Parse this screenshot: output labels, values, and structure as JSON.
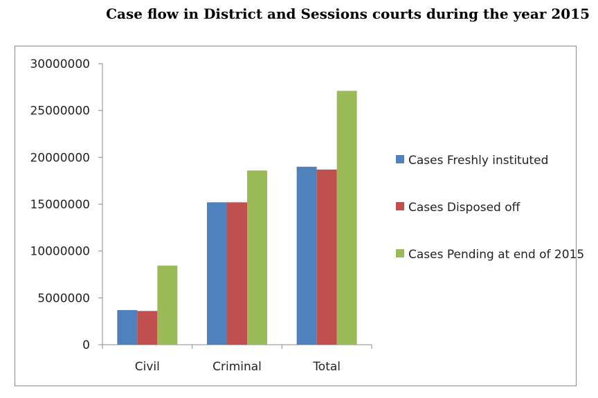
{
  "title": "Case flow in District and Sessions courts during the year 2015",
  "chart_data": {
    "type": "bar",
    "categories": [
      "Civil",
      "Criminal",
      "Total"
    ],
    "series": [
      {
        "name": "Cases Freshly instituted",
        "color": "#4f81bd",
        "values": [
          3700000,
          15200000,
          19000000
        ]
      },
      {
        "name": "Cases Disposed off",
        "color": "#c0504d",
        "values": [
          3600000,
          15200000,
          18700000
        ]
      },
      {
        "name": "Cases Pending at end of 2015",
        "color": "#9bbb59",
        "values": [
          8450000,
          18600000,
          27100000
        ]
      }
    ],
    "yticks": [
      "0",
      "5000000",
      "10000000",
      "15000000",
      "20000000",
      "25000000",
      "30000000"
    ],
    "ylim": [
      0,
      30000000
    ],
    "legend_position": "right",
    "grid": false
  }
}
